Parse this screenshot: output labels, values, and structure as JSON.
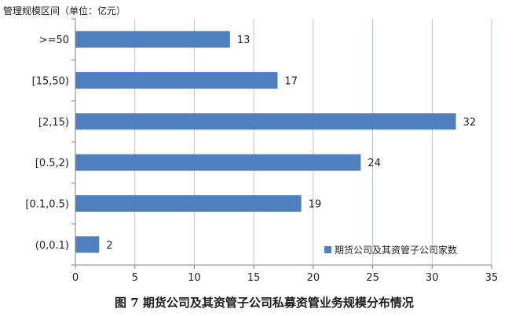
{
  "chart_data": {
    "type": "bar",
    "orientation": "horizontal",
    "categories": [
      "(0,0.1)",
      "[0.1,0.5)",
      "[0.5,2)",
      "[2,15)",
      "[15,50)",
      ">=50"
    ],
    "series": [
      {
        "name": "期货公司及其资管子公司家数",
        "values": [
          2,
          19,
          24,
          32,
          17,
          13
        ]
      }
    ],
    "ylabel": "管理规模区间（单位：亿元）",
    "xlabel": "",
    "xlim": [
      0,
      35
    ],
    "xticks": [
      0,
      5,
      10,
      15,
      20,
      25,
      30,
      35
    ],
    "grid": true,
    "legend_position": "bottom-right",
    "bar_color": "#4f7fbd",
    "grid_color": "#b9c3d6"
  },
  "caption": "图 7   期货公司及其资管子公司私募资管业务规模分布情况"
}
